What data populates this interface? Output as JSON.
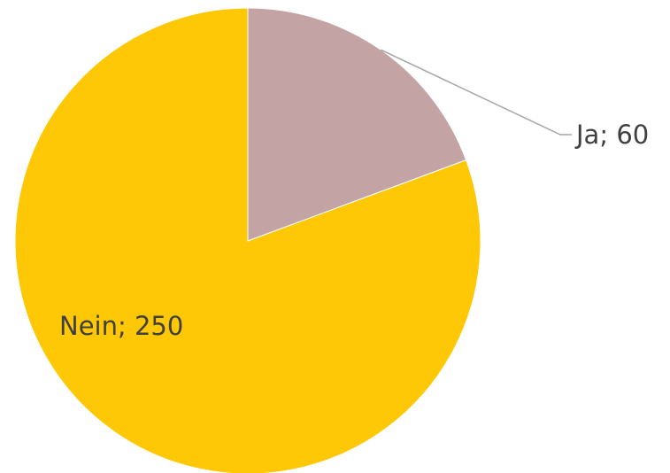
{
  "chart_data": {
    "type": "pie",
    "categories": [
      "Ja",
      "Nein"
    ],
    "values": [
      60,
      250
    ],
    "data_labels": [
      "Ja; 60",
      "Nein; 250"
    ],
    "colors": [
      "#c4a3a4",
      "#fec806"
    ],
    "leader_line_color": "#a6a6a6",
    "legend": "none"
  }
}
